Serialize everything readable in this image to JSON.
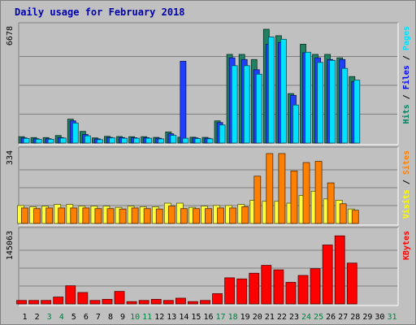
{
  "title": "Daily usage for February 2018",
  "chart_data": [
    {
      "type": "bar",
      "panel": "pages-files-hits",
      "categories": [
        "1",
        "2",
        "3",
        "4",
        "5",
        "6",
        "7",
        "8",
        "9",
        "10",
        "11",
        "12",
        "13",
        "14",
        "15",
        "16",
        "17",
        "18",
        "19",
        "20",
        "21",
        "22",
        "23",
        "24",
        "25",
        "26",
        "27",
        "28",
        "29",
        "30",
        "31"
      ],
      "ymax_label": "6678",
      "ymax": 6678,
      "legend": [
        {
          "name": "Pages",
          "color": "#00e0ff"
        },
        {
          "name": "Files",
          "color": "#0000ff"
        },
        {
          "name": "Hits",
          "color": "#008060"
        }
      ],
      "legend_separator": " / ",
      "series": [
        {
          "name": "Hits",
          "color": "#208060",
          "values": [
            370,
            320,
            320,
            440,
            1400,
            680,
            300,
            390,
            380,
            370,
            370,
            330,
            650,
            340,
            340,
            330,
            1300,
            5200,
            5200,
            4900,
            6678,
            6300,
            2900,
            5800,
            5200,
            5200,
            5000,
            3900,
            0,
            0,
            0
          ]
        },
        {
          "name": "Files",
          "color": "#2040ff",
          "values": [
            300,
            250,
            250,
            320,
            1300,
            500,
            240,
            330,
            320,
            310,
            310,
            280,
            540,
            4800,
            300,
            280,
            1200,
            5000,
            4900,
            4300,
            5800,
            5900,
            2800,
            5300,
            5000,
            4900,
            4900,
            3600,
            0,
            0,
            0
          ]
        },
        {
          "name": "Pages",
          "color": "#00e0ff",
          "values": [
            270,
            220,
            220,
            290,
            1170,
            420,
            200,
            300,
            280,
            280,
            280,
            240,
            450,
            280,
            260,
            250,
            1060,
            4540,
            4540,
            4040,
            6220,
            6090,
            2230,
            5330,
            4730,
            4850,
            4380,
            3690,
            0,
            0,
            0
          ]
        }
      ]
    },
    {
      "type": "bar",
      "panel": "sites-visits",
      "categories": [
        "1",
        "2",
        "3",
        "4",
        "5",
        "6",
        "7",
        "8",
        "9",
        "10",
        "11",
        "12",
        "13",
        "14",
        "15",
        "16",
        "17",
        "18",
        "19",
        "20",
        "21",
        "22",
        "23",
        "24",
        "25",
        "26",
        "27",
        "28",
        "29",
        "30",
        "31"
      ],
      "ymax_label": "334",
      "ymax": 334,
      "legend": [
        {
          "name": "Sites",
          "color": "#ff8000"
        },
        {
          "name": "Visits",
          "color": "#ffff00"
        }
      ],
      "legend_separator": " / ",
      "series": [
        {
          "name": "Visits",
          "color": "#ffff40",
          "values": [
            86,
            80,
            83,
            91,
            91,
            83,
            83,
            83,
            77,
            83,
            80,
            80,
            97,
            97,
            77,
            83,
            86,
            86,
            91,
            111,
            106,
            106,
            97,
            134,
            154,
            117,
            111,
            69,
            0,
            0,
            0
          ]
        },
        {
          "name": "Sites",
          "color": "#ff8000",
          "values": [
            74,
            71,
            74,
            74,
            74,
            74,
            71,
            71,
            69,
            74,
            71,
            69,
            83,
            71,
            71,
            71,
            74,
            74,
            80,
            226,
            334,
            334,
            251,
            291,
            297,
            194,
            94,
            63,
            0,
            0,
            0
          ]
        }
      ]
    },
    {
      "type": "bar",
      "panel": "kbytes",
      "categories": [
        "1",
        "2",
        "3",
        "4",
        "5",
        "6",
        "7",
        "8",
        "9",
        "10",
        "11",
        "12",
        "13",
        "14",
        "15",
        "16",
        "17",
        "18",
        "19",
        "20",
        "21",
        "22",
        "23",
        "24",
        "25",
        "26",
        "27",
        "28",
        "29",
        "30",
        "31"
      ],
      "ymax_label": "145063",
      "ymax": 145063,
      "legend": [
        {
          "name": "KBytes",
          "color": "#ff0000"
        }
      ],
      "series": [
        {
          "name": "KBytes",
          "color": "#ff0000",
          "values": [
            7100,
            7100,
            7100,
            14200,
            37600,
            23600,
            7100,
            9400,
            25900,
            4700,
            7100,
            9400,
            7100,
            11800,
            4700,
            7100,
            21200,
            54100,
            51800,
            63600,
            80000,
            70600,
            44700,
            59000,
            73000,
            122300,
            141200,
            84700,
            0,
            0,
            0
          ]
        }
      ]
    }
  ],
  "xaxis": {
    "labels": [
      "1",
      "2",
      "3",
      "4",
      "5",
      "6",
      "7",
      "8",
      "9",
      "10",
      "11",
      "12",
      "13",
      "14",
      "15",
      "16",
      "17",
      "18",
      "19",
      "20",
      "21",
      "22",
      "23",
      "24",
      "25",
      "26",
      "27",
      "28",
      "29",
      "30",
      "31"
    ],
    "weekend_color": "#008040",
    "weekday_color": "#000000",
    "weekend_days": [
      "3",
      "4",
      "10",
      "11",
      "17",
      "18",
      "24",
      "25",
      "31"
    ]
  }
}
